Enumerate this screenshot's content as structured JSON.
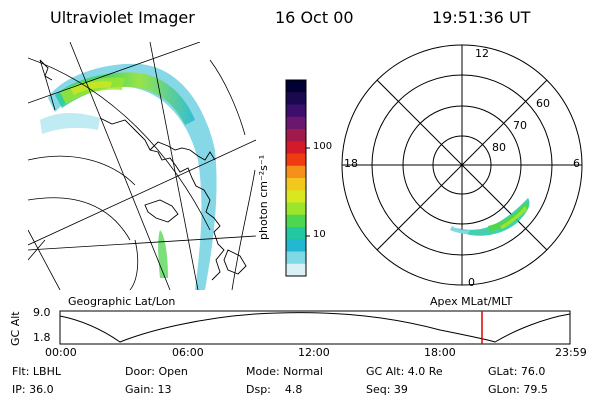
{
  "header": {
    "instrument": "Ultraviolet Imager",
    "date": "16 Oct 00",
    "time": "19:51:36 UT"
  },
  "colorbar": {
    "unit_label": "photon cm⁻²s⁻¹",
    "ticks": [
      "100",
      "10"
    ],
    "colors": [
      "#000033",
      "#1a0a4d",
      "#3b0f6b",
      "#6a176e",
      "#a01a4c",
      "#d21a2a",
      "#f03a10",
      "#f7901a",
      "#f2c81e",
      "#d9e81e",
      "#9be62c",
      "#4fd64f",
      "#22c8a0",
      "#22b8d2",
      "#7fd8e6",
      "#d9f0f4"
    ]
  },
  "polar": {
    "mlt_labels": {
      "top": "12",
      "left": "18",
      "right": "6",
      "bottom": "0"
    },
    "lat_labels": [
      "60",
      "70",
      "80"
    ]
  },
  "timeline": {
    "left_title": "Geographic Lat/Lon",
    "right_title": "Apex MLat/MLT",
    "yaxis_label": "GC Alt",
    "y_ticks": [
      "9.0",
      "1.8"
    ],
    "x_ticks": [
      "00:00",
      "06:00",
      "12:00",
      "18:00",
      "23:59"
    ],
    "current_time_color": "#e00000"
  },
  "info": {
    "row1": [
      "Flt: LBHL",
      "Door: Open",
      "Mode: Normal",
      "GC Alt: 4.0 Re",
      "GLat: 76.0"
    ],
    "row2": [
      "IP: 36.0",
      "Gain: 13",
      "Dsp:    4.8",
      "Seq: 39",
      "GLon: 79.5"
    ]
  }
}
